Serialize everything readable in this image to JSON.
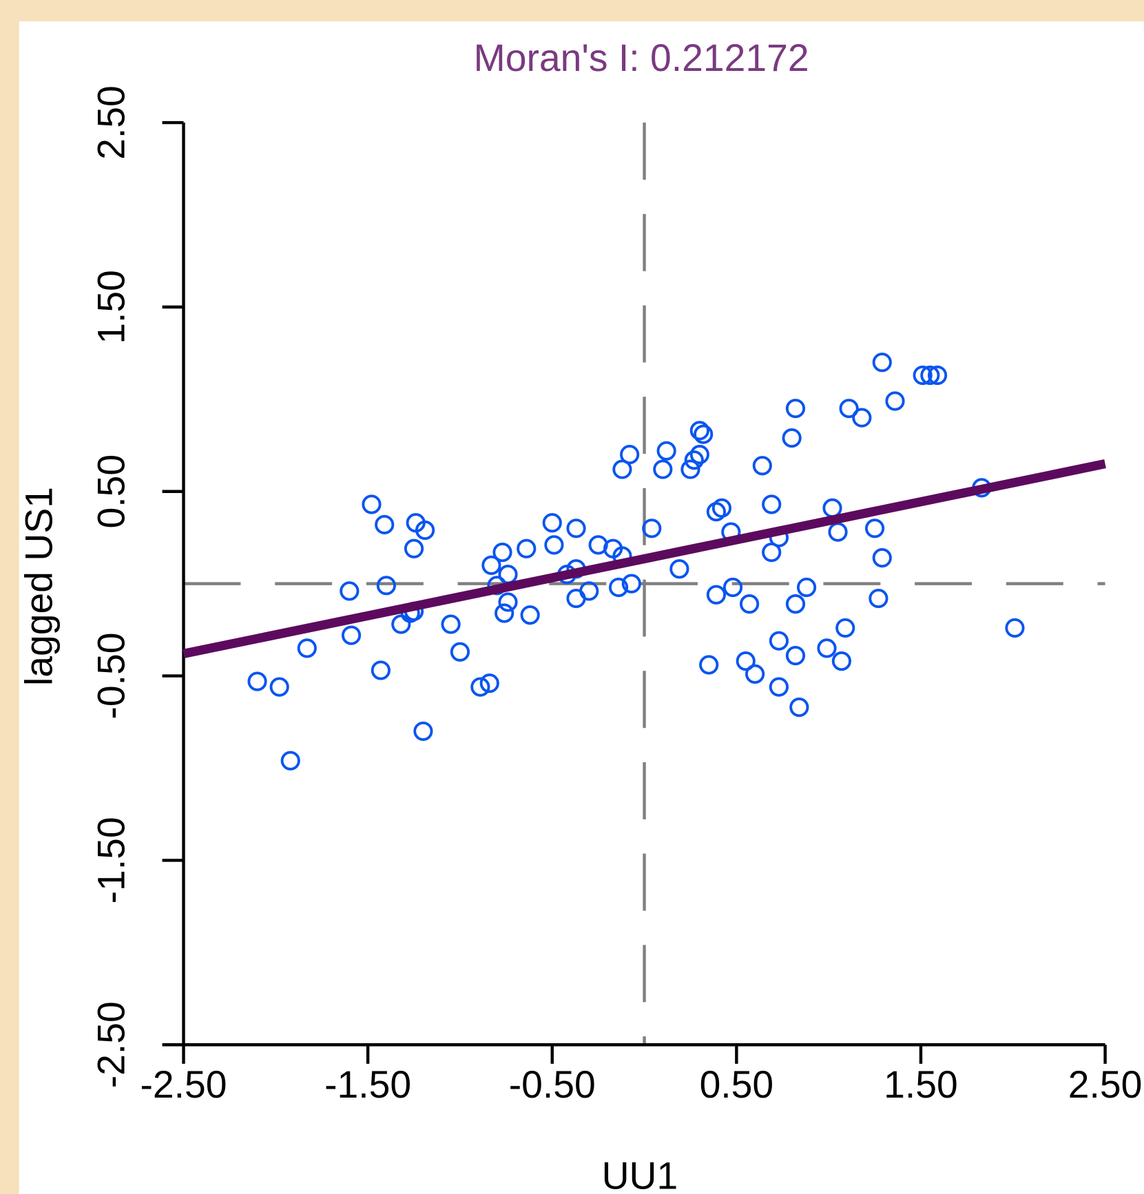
{
  "chart_data": {
    "type": "scatter",
    "title": "Moran's I: 0.212172",
    "xlabel": "UU1",
    "ylabel": "lagged US1",
    "xlim": [
      -2.5,
      2.5
    ],
    "ylim": [
      -2.5,
      2.5
    ],
    "xticks": [
      {
        "value": -2.5,
        "label": "-2.50"
      },
      {
        "value": -1.5,
        "label": "-1.50"
      },
      {
        "value": -0.5,
        "label": "-0.50"
      },
      {
        "value": 0.5,
        "label": "0.50"
      },
      {
        "value": 1.5,
        "label": "1.50"
      },
      {
        "value": 2.5,
        "label": "2.50"
      }
    ],
    "yticks": [
      {
        "value": -2.5,
        "label": "-2.50"
      },
      {
        "value": -1.5,
        "label": "-1.50"
      },
      {
        "value": -0.5,
        "label": "-0.50"
      },
      {
        "value": 0.5,
        "label": "0.50"
      },
      {
        "value": 1.5,
        "label": "1.50"
      },
      {
        "value": 2.5,
        "label": "2.50"
      }
    ],
    "color": "#0a55f0",
    "x": [
      1.29,
      1.51,
      1.55,
      1.59,
      1.36,
      0.82,
      1.11,
      1.18,
      0.8,
      0.3,
      0.32,
      0.3,
      0.27,
      -0.08,
      0.12,
      -0.12,
      0.1,
      0.25,
      0.64,
      1.83,
      -1.48,
      -1.41,
      -1.24,
      -1.19,
      -1.25,
      0.69,
      0.39,
      0.42,
      0.47,
      1.02,
      1.05,
      1.25,
      1.29,
      0.69,
      0.73,
      0.04,
      0.19,
      -0.5,
      -0.37,
      -0.49,
      -0.64,
      -0.77,
      -0.83,
      -0.74,
      -0.25,
      -0.17,
      -0.12,
      -0.42,
      -0.37,
      -0.14,
      -0.07,
      -0.3,
      -0.37,
      -0.74,
      -0.76,
      -0.62,
      -0.8,
      -1.4,
      -1.6,
      -1.25,
      -1.27,
      -1.32,
      -1.59,
      -1.05,
      -1.0,
      -1.83,
      -1.43,
      -2.1,
      -1.98,
      -0.89,
      -0.84,
      -1.2,
      -1.92,
      0.48,
      0.39,
      0.57,
      0.82,
      0.88,
      1.27,
      1.09,
      2.01,
      0.73,
      0.82,
      0.99,
      1.07,
      0.55,
      0.6,
      0.35,
      0.73,
      0.84
    ],
    "values": [
      1.2,
      1.13,
      1.13,
      1.13,
      0.99,
      0.95,
      0.95,
      0.9,
      0.79,
      0.83,
      0.81,
      0.7,
      0.67,
      0.7,
      0.72,
      0.62,
      0.62,
      0.62,
      0.64,
      0.52,
      0.43,
      0.32,
      0.33,
      0.29,
      0.19,
      0.43,
      0.39,
      0.41,
      0.28,
      0.41,
      0.28,
      0.3,
      0.14,
      0.17,
      0.25,
      0.3,
      0.08,
      0.33,
      0.3,
      0.21,
      0.19,
      0.17,
      0.1,
      0.05,
      0.21,
      0.19,
      0.15,
      0.05,
      0.08,
      -0.02,
      0.0,
      -0.04,
      -0.08,
      -0.1,
      -0.16,
      -0.17,
      -0.01,
      -0.01,
      -0.04,
      -0.15,
      -0.16,
      -0.22,
      -0.28,
      -0.22,
      -0.37,
      -0.35,
      -0.47,
      -0.53,
      -0.56,
      -0.56,
      -0.54,
      -0.8,
      -0.96,
      -0.02,
      -0.06,
      -0.11,
      -0.11,
      -0.02,
      -0.08,
      -0.24,
      -0.24,
      -0.31,
      -0.39,
      -0.35,
      -0.42,
      -0.42,
      -0.49,
      -0.44,
      -0.56,
      -0.67
    ],
    "fit_line": {
      "x": [
        -2.5,
        2.5
      ],
      "y": [
        -0.38,
        0.65
      ],
      "color": "#5c0a5e"
    },
    "reference_lines": {
      "x": 0,
      "y": 0,
      "color": "#808080"
    }
  }
}
